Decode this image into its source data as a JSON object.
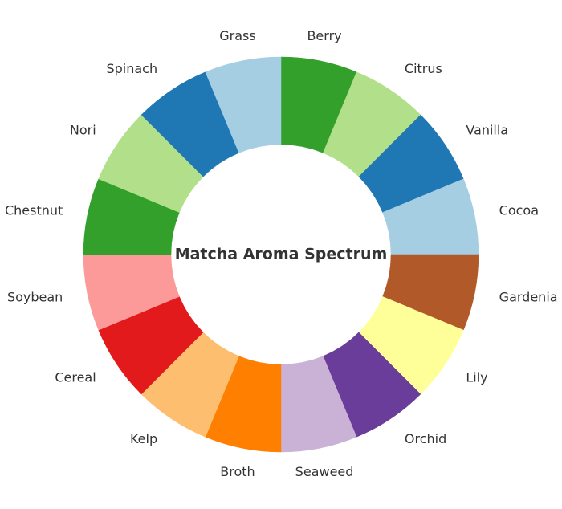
{
  "chart_data": {
    "type": "pie",
    "variant": "donut",
    "title": "Matcha Aroma Spectrum",
    "start_angle_deg": 90,
    "direction": "clockwise",
    "legend": "none",
    "slices": [
      {
        "label": "Berry",
        "value": 1,
        "color": "#33a02c"
      },
      {
        "label": "Citrus",
        "value": 1,
        "color": "#b2df8a"
      },
      {
        "label": "Vanilla",
        "value": 1,
        "color": "#1f78b4"
      },
      {
        "label": "Cocoa",
        "value": 1,
        "color": "#a6cee3"
      },
      {
        "label": "Gardenia",
        "value": 1,
        "color": "#b15928"
      },
      {
        "label": "Lily",
        "value": 1,
        "color": "#ffff99"
      },
      {
        "label": "Orchid",
        "value": 1,
        "color": "#6a3d9a"
      },
      {
        "label": "Seaweed",
        "value": 1,
        "color": "#cab2d6"
      },
      {
        "label": "Broth",
        "value": 1,
        "color": "#ff7f00"
      },
      {
        "label": "Kelp",
        "value": 1,
        "color": "#fdbf6f"
      },
      {
        "label": "Cereal",
        "value": 1,
        "color": "#e31a1c"
      },
      {
        "label": "Soybean",
        "value": 1,
        "color": "#fb9a99"
      },
      {
        "label": "Chestnut",
        "value": 1,
        "color": "#33a02c"
      },
      {
        "label": "Nori",
        "value": 1,
        "color": "#b2df8a"
      },
      {
        "label": "Spinach",
        "value": 1,
        "color": "#1f78b4"
      },
      {
        "label": "Grass",
        "value": 1,
        "color": "#a6cee3"
      }
    ]
  }
}
